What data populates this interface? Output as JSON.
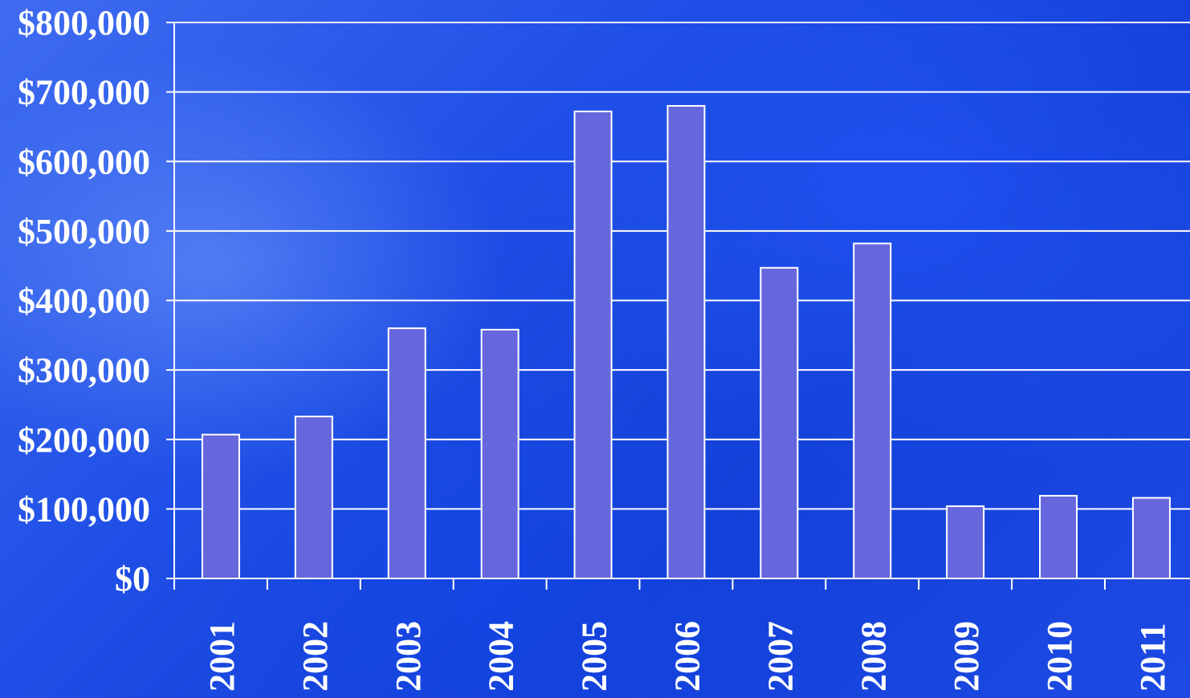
{
  "chart_data": {
    "type": "bar",
    "title": "",
    "xlabel": "",
    "ylabel": "",
    "categories": [
      "2001",
      "2002",
      "2003",
      "2004",
      "2005",
      "2006",
      "2007",
      "2008",
      "2009",
      "2010",
      "2011"
    ],
    "values": [
      207000,
      233000,
      360000,
      358000,
      672000,
      680000,
      447000,
      482000,
      104000,
      119000,
      116000
    ],
    "ylim": [
      0,
      800000
    ],
    "yticks": [
      0,
      100000,
      200000,
      300000,
      400000,
      500000,
      600000,
      700000,
      800000
    ],
    "ytick_labels": [
      "$0",
      "$100,000",
      "$200,000",
      "$300,000",
      "$400,000",
      "$500,000",
      "$600,000",
      "$700,000",
      "$800,000"
    ],
    "grid": true,
    "legend": "none",
    "colors": {
      "bar_fill": "#6666dd",
      "bar_border": "#ffffff",
      "text": "#ffffff",
      "background": "#1f4fe6"
    }
  }
}
